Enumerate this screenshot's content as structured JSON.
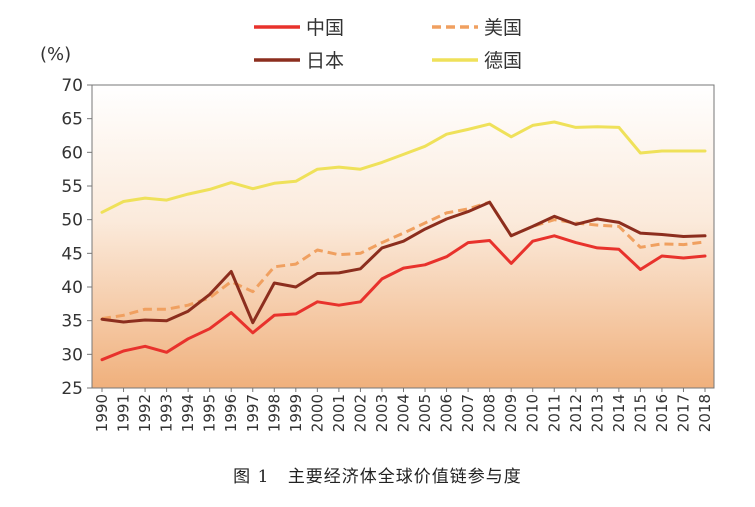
{
  "figure": {
    "number": "图 1",
    "caption": "主要经济体全球价值链参与度"
  },
  "chart_data": {
    "type": "line",
    "ylabel": "(%)",
    "ylim": [
      25,
      70
    ],
    "yticks": [
      25,
      30,
      35,
      40,
      45,
      50,
      55,
      60,
      65,
      70
    ],
    "grid": false,
    "legend": "top",
    "x": [
      "1990",
      "1991",
      "1992",
      "1993",
      "1994",
      "1995",
      "1996",
      "1997",
      "1998",
      "1999",
      "2000",
      "2001",
      "2002",
      "2003",
      "2004",
      "2005",
      "2006",
      "2007",
      "2008",
      "2009",
      "2010",
      "2011",
      "2012",
      "2013",
      "2014",
      "2015",
      "2016",
      "2017",
      "2018"
    ],
    "series": [
      {
        "name": "中国",
        "color": "#e8322c",
        "style": "solid",
        "values": [
          29.2,
          30.5,
          31.2,
          30.3,
          32.3,
          33.8,
          36.2,
          33.2,
          35.8,
          36.0,
          37.8,
          37.3,
          37.8,
          41.2,
          42.8,
          43.3,
          44.5,
          46.6,
          46.9,
          43.5,
          46.8,
          47.6,
          46.6,
          45.8,
          45.6,
          42.6,
          44.6,
          44.3,
          44.6
        ]
      },
      {
        "name": "美国",
        "color": "#f0a060",
        "style": "dashed",
        "values": [
          35.3,
          35.8,
          36.7,
          36.7,
          37.3,
          38.4,
          40.8,
          39.3,
          43.0,
          43.4,
          45.5,
          44.8,
          45.0,
          46.6,
          48.0,
          49.5,
          51.0,
          51.6,
          52.6,
          47.6,
          49.0,
          50.0,
          49.5,
          49.2,
          49.0,
          45.9,
          46.4,
          46.3,
          46.7
        ]
      },
      {
        "name": "日本",
        "color": "#8c2e1e",
        "style": "solid",
        "values": [
          35.2,
          34.8,
          35.1,
          35.0,
          36.4,
          38.9,
          42.3,
          34.7,
          40.6,
          40.0,
          42.0,
          42.1,
          42.7,
          45.8,
          46.8,
          48.6,
          50.1,
          51.2,
          52.6,
          47.6,
          49.0,
          50.5,
          49.3,
          50.1,
          49.6,
          48.0,
          47.8,
          47.5,
          47.6
        ]
      },
      {
        "name": "德国",
        "color": "#efe15a",
        "style": "solid",
        "values": [
          51.1,
          52.7,
          53.2,
          52.9,
          53.8,
          54.5,
          55.5,
          54.6,
          55.4,
          55.7,
          57.5,
          57.8,
          57.5,
          58.5,
          59.7,
          60.9,
          62.7,
          63.4,
          64.2,
          62.3,
          64.0,
          64.5,
          63.7,
          63.8,
          63.7,
          59.9,
          60.2,
          60.2,
          60.2
        ]
      }
    ]
  }
}
